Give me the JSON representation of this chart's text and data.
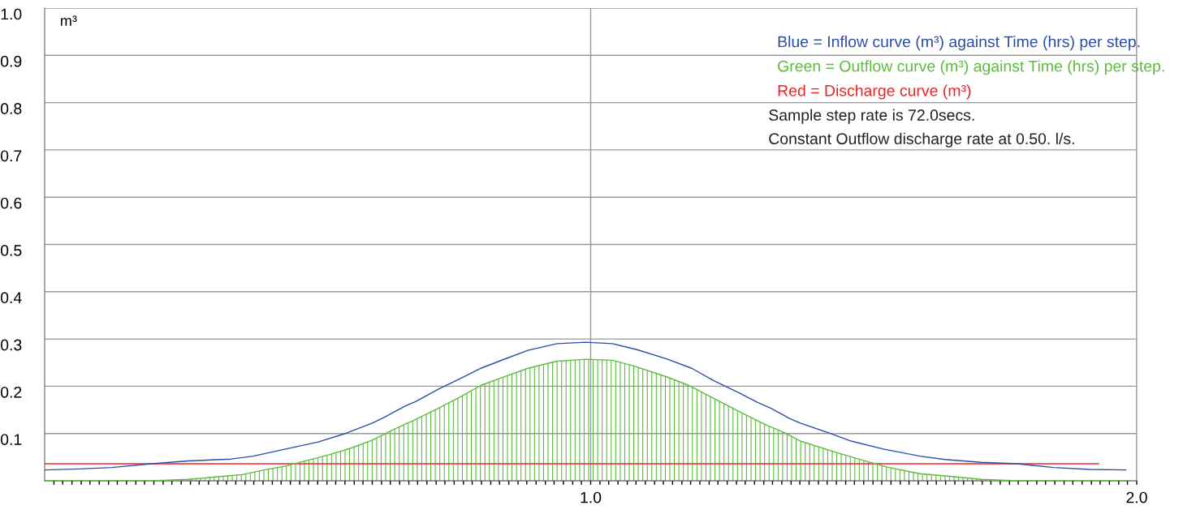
{
  "chart_data": {
    "type": "line",
    "ylabel": "m³",
    "xlim": [
      0,
      2.0
    ],
    "ylim": [
      0,
      1.0
    ],
    "yticks": [
      0.1,
      0.2,
      0.3,
      0.4,
      0.5,
      0.6,
      0.7,
      0.8,
      0.9,
      {
        "value": 1.0,
        "label": "1.0"
      }
    ],
    "xticks": [
      {
        "value": 0.017,
        "label": null
      },
      {
        "value": 0.033,
        "label": null
      },
      {
        "value": 0.05,
        "label": null
      },
      {
        "value": 0.067,
        "label": null
      },
      {
        "value": 0.083,
        "label": null
      },
      {
        "value": 0.1,
        "label": null
      },
      {
        "value": 0.117,
        "label": null
      },
      {
        "value": 0.133,
        "label": null
      },
      {
        "value": 0.15,
        "label": null
      },
      {
        "value": 0.167,
        "label": null
      },
      {
        "value": 0.183,
        "label": null
      },
      {
        "value": 0.2,
        "label": null
      },
      {
        "value": 0.217,
        "label": null
      },
      {
        "value": 0.233,
        "label": null
      },
      {
        "value": 0.25,
        "label": null
      },
      {
        "value": 0.267,
        "label": null
      },
      {
        "value": 0.283,
        "label": null
      },
      {
        "value": 0.3,
        "label": null
      },
      {
        "value": 0.317,
        "label": null
      },
      {
        "value": 0.333,
        "label": null
      },
      {
        "value": 0.35,
        "label": null
      },
      {
        "value": 0.367,
        "label": null
      },
      {
        "value": 0.383,
        "label": null
      },
      {
        "value": 0.4,
        "label": null
      },
      {
        "value": 0.417,
        "label": null
      },
      {
        "value": 0.433,
        "label": null
      },
      {
        "value": 0.45,
        "label": null
      },
      {
        "value": 0.467,
        "label": null
      },
      {
        "value": 0.483,
        "label": null
      },
      {
        "value": 0.5,
        "label": null
      },
      {
        "value": 0.517,
        "label": null
      },
      {
        "value": 0.533,
        "label": null
      },
      {
        "value": 0.55,
        "label": null
      },
      {
        "value": 0.567,
        "label": null
      },
      {
        "value": 0.583,
        "label": null
      },
      {
        "value": 0.6,
        "label": null
      },
      {
        "value": 0.617,
        "label": null
      },
      {
        "value": 0.633,
        "label": null
      },
      {
        "value": 0.65,
        "label": null
      },
      {
        "value": 0.667,
        "label": null
      },
      {
        "value": 0.683,
        "label": null
      },
      {
        "value": 0.7,
        "label": null
      },
      {
        "value": 0.717,
        "label": null
      },
      {
        "value": 0.733,
        "label": null
      },
      {
        "value": 0.75,
        "label": null
      },
      {
        "value": 0.767,
        "label": null
      },
      {
        "value": 0.783,
        "label": null
      },
      {
        "value": 0.8,
        "label": null
      },
      {
        "value": 0.817,
        "label": null
      },
      {
        "value": 0.833,
        "label": null
      },
      {
        "value": 0.85,
        "label": null
      },
      {
        "value": 0.867,
        "label": null
      },
      {
        "value": 0.883,
        "label": null
      },
      {
        "value": 0.9,
        "label": null
      },
      {
        "value": 0.917,
        "label": null
      },
      {
        "value": 0.933,
        "label": null
      },
      {
        "value": 0.95,
        "label": null
      },
      {
        "value": 0.967,
        "label": null
      },
      {
        "value": 0.983,
        "label": null
      },
      {
        "value": 1.0,
        "label": "1.0"
      },
      {
        "value": 1.017,
        "label": null
      },
      {
        "value": 1.033,
        "label": null
      },
      {
        "value": 1.05,
        "label": null
      },
      {
        "value": 1.067,
        "label": null
      },
      {
        "value": 1.083,
        "label": null
      },
      {
        "value": 1.1,
        "label": null
      },
      {
        "value": 1.117,
        "label": null
      },
      {
        "value": 1.133,
        "label": null
      },
      {
        "value": 1.15,
        "label": null
      },
      {
        "value": 1.167,
        "label": null
      },
      {
        "value": 1.183,
        "label": null
      },
      {
        "value": 1.2,
        "label": null
      },
      {
        "value": 1.217,
        "label": null
      },
      {
        "value": 1.233,
        "label": null
      },
      {
        "value": 1.25,
        "label": null
      },
      {
        "value": 1.267,
        "label": null
      },
      {
        "value": 1.283,
        "label": null
      },
      {
        "value": 1.3,
        "label": null
      },
      {
        "value": 1.317,
        "label": null
      },
      {
        "value": 1.333,
        "label": null
      },
      {
        "value": 1.35,
        "label": null
      },
      {
        "value": 1.367,
        "label": null
      },
      {
        "value": 1.383,
        "label": null
      },
      {
        "value": 1.4,
        "label": null
      },
      {
        "value": 1.417,
        "label": null
      },
      {
        "value": 1.433,
        "label": null
      },
      {
        "value": 1.45,
        "label": null
      },
      {
        "value": 1.467,
        "label": null
      },
      {
        "value": 1.483,
        "label": null
      },
      {
        "value": 1.5,
        "label": null
      },
      {
        "value": 1.517,
        "label": null
      },
      {
        "value": 1.533,
        "label": null
      },
      {
        "value": 1.55,
        "label": null
      },
      {
        "value": 1.567,
        "label": null
      },
      {
        "value": 1.583,
        "label": null
      },
      {
        "value": 1.6,
        "label": null
      },
      {
        "value": 1.617,
        "label": null
      },
      {
        "value": 1.633,
        "label": null
      },
      {
        "value": 1.65,
        "label": null
      },
      {
        "value": 1.667,
        "label": null
      },
      {
        "value": 1.683,
        "label": null
      },
      {
        "value": 1.7,
        "label": null
      },
      {
        "value": 1.717,
        "label": null
      },
      {
        "value": 1.733,
        "label": null
      },
      {
        "value": 1.75,
        "label": null
      },
      {
        "value": 1.767,
        "label": null
      },
      {
        "value": 1.783,
        "label": null
      },
      {
        "value": 1.8,
        "label": null
      },
      {
        "value": 1.817,
        "label": null
      },
      {
        "value": 1.833,
        "label": null
      },
      {
        "value": 1.85,
        "label": null
      },
      {
        "value": 1.867,
        "label": null
      },
      {
        "value": 1.883,
        "label": null
      },
      {
        "value": 1.9,
        "label": null
      },
      {
        "value": 1.917,
        "label": null
      },
      {
        "value": 1.933,
        "label": null
      },
      {
        "value": 1.95,
        "label": null
      },
      {
        "value": 1.967,
        "label": null
      },
      {
        "value": 1.983,
        "label": null
      },
      {
        "value": 2.0,
        "label": "2.0"
      }
    ],
    "grid": true,
    "legend": "top right",
    "marker": "none",
    "line_style": "solid",
    "series": [
      {
        "name": "Blue = Inflow curve (m³) against Time (hrs) per step.",
        "color": "#2a4ea8",
        "x": [
          0.001,
          0.064,
          0.123,
          0.196,
          0.263,
          0.342,
          0.382,
          0.441,
          0.501,
          0.548,
          0.6,
          0.62,
          0.66,
          0.68,
          0.72,
          0.759,
          0.799,
          0.839,
          0.885,
          0.938,
          0.991,
          1.04,
          1.086,
          1.139,
          1.185,
          1.225,
          1.272,
          1.305,
          1.331,
          1.364,
          1.384,
          1.437,
          1.477,
          1.536,
          1.603,
          1.649,
          1.715,
          1.781,
          1.848,
          1.914,
          1.98
        ],
        "values": [
          0.023,
          0.025,
          0.028,
          0.036,
          0.042,
          0.046,
          0.052,
          0.067,
          0.082,
          0.099,
          0.122,
          0.133,
          0.158,
          0.168,
          0.193,
          0.215,
          0.238,
          0.256,
          0.276,
          0.29,
          0.293,
          0.29,
          0.277,
          0.258,
          0.238,
          0.212,
          0.186,
          0.166,
          0.153,
          0.132,
          0.122,
          0.101,
          0.084,
          0.067,
          0.052,
          0.045,
          0.039,
          0.036,
          0.028,
          0.024,
          0.023
        ]
      },
      {
        "name": "Green = Outflow curve (m³) against Time (hrs) per step.",
        "color": "#5dbb3f",
        "type": "area",
        "x": [
          0.001,
          0.196,
          0.263,
          0.322,
          0.362,
          0.402,
          0.441,
          0.481,
          0.521,
          0.561,
          0.6,
          0.64,
          0.68,
          0.72,
          0.759,
          0.799,
          0.839,
          0.885,
          0.938,
          0.991,
          1.04,
          1.079,
          1.139,
          1.179,
          1.219,
          1.278,
          1.318,
          1.358,
          1.384,
          1.444,
          1.497,
          1.543,
          1.603,
          1.662,
          1.715,
          1.781,
          1.98
        ],
        "values": [
          0,
          0,
          0.003,
          0.009,
          0.013,
          0.023,
          0.031,
          0.043,
          0.055,
          0.069,
          0.086,
          0.109,
          0.13,
          0.153,
          0.176,
          0.202,
          0.219,
          0.238,
          0.253,
          0.257,
          0.255,
          0.243,
          0.22,
          0.202,
          0.178,
          0.143,
          0.12,
          0.1,
          0.084,
          0.062,
          0.044,
          0.029,
          0.015,
          0.009,
          0.003,
          0,
          0
        ]
      },
      {
        "name": "Red = Discharge curve (m³)",
        "color": "#ee2222",
        "x": [
          0,
          1.93
        ],
        "values": [
          0.036,
          0.036
        ]
      }
    ],
    "annotations": [
      "Sample step rate is 72.0secs.",
      "Constant Outflow discharge rate at 0.50. l/s."
    ]
  }
}
